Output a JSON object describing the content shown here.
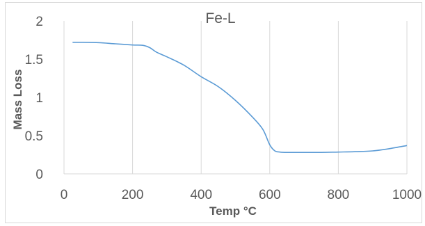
{
  "chart_data": {
    "type": "line",
    "title": "Fe-L",
    "xlabel": "Temp °C",
    "ylabel": "Mass Loss",
    "xlim": [
      0,
      1000
    ],
    "ylim": [
      0,
      2
    ],
    "x_ticks": [
      "0",
      "200",
      "400",
      "600",
      "800",
      "1000"
    ],
    "y_ticks": [
      "0",
      "0.5",
      "1",
      "1.5",
      "2"
    ],
    "grid": {
      "vertical": true,
      "horizontal": false
    },
    "legend": "none",
    "series": [
      {
        "color": "#5b9bd5",
        "x": [
          25,
          50,
          100,
          150,
          200,
          230,
          250,
          270,
          300,
          350,
          400,
          450,
          500,
          550,
          580,
          600,
          615,
          630,
          650,
          700,
          750,
          800,
          850,
          900,
          950,
          1000
        ],
        "y": [
          1.72,
          1.72,
          1.715,
          1.7,
          1.685,
          1.68,
          1.65,
          1.59,
          1.53,
          1.42,
          1.27,
          1.14,
          0.96,
          0.74,
          0.58,
          0.38,
          0.3,
          0.285,
          0.28,
          0.28,
          0.28,
          0.285,
          0.29,
          0.3,
          0.33,
          0.37
        ]
      }
    ]
  }
}
